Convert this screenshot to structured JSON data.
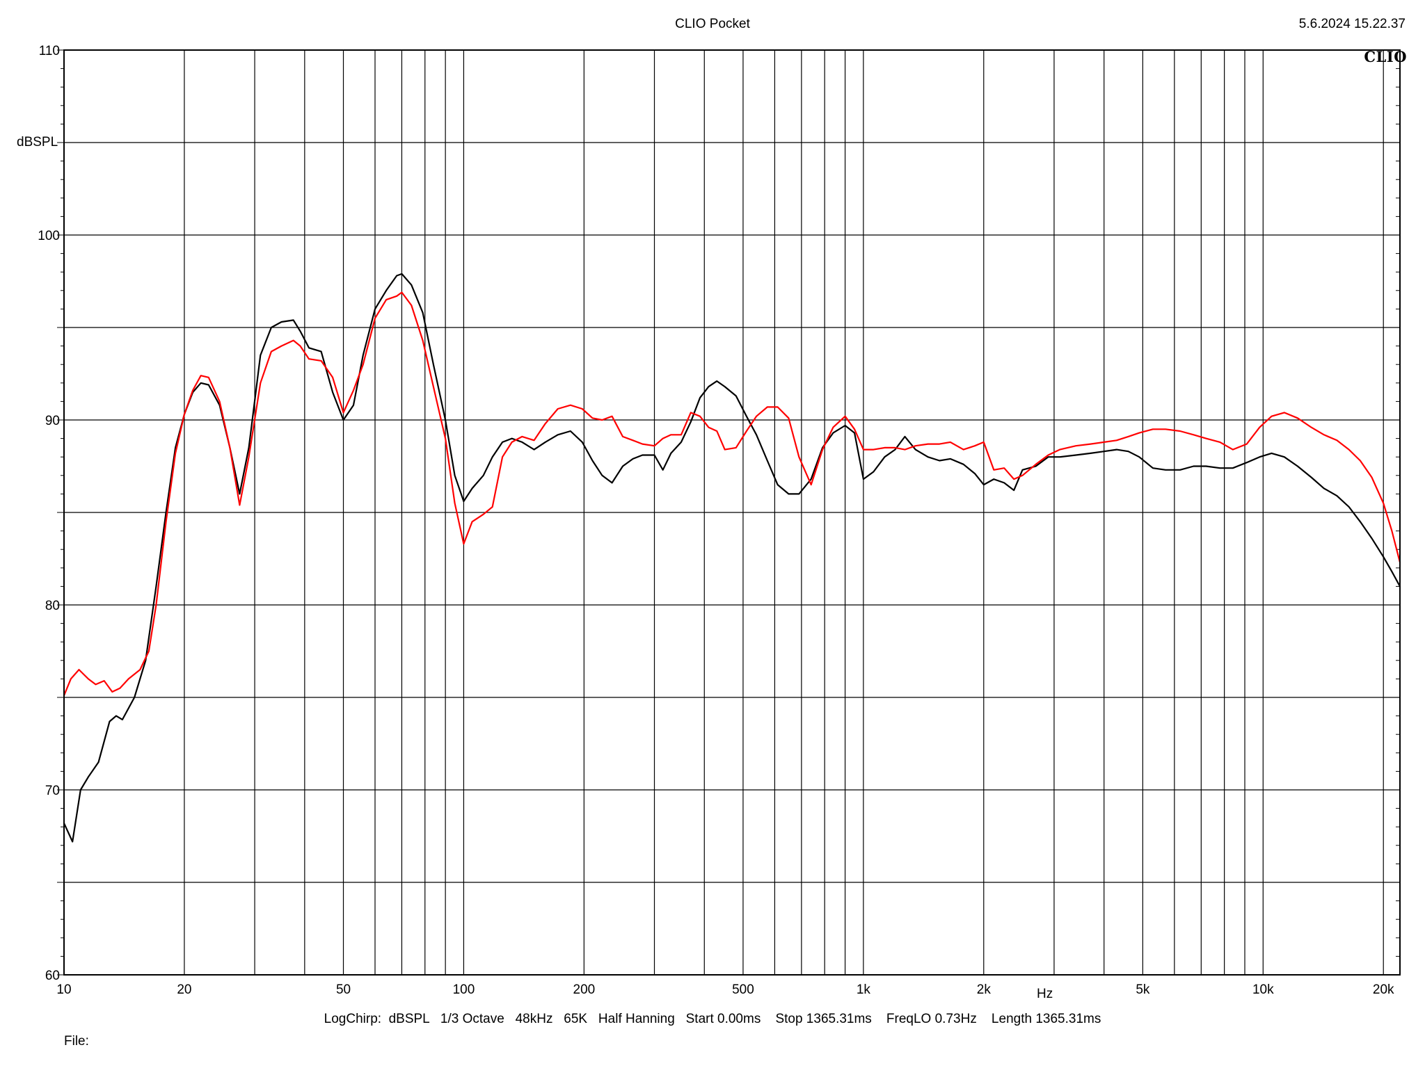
{
  "window": {
    "title": "CLIO Pocket",
    "datetime": "5.6.2024 15.22.37",
    "brand": "CLIO"
  },
  "footer": {
    "params": "LogChirp:  dBSPL   1/3 Octave   48kHz   65K   Half Hanning   Start 0.00ms    Stop 1365.31ms    FreqLO 0.73Hz    Length 1365.31ms",
    "file_label": "File:"
  },
  "chart_data": {
    "type": "line",
    "title": "CLIO Pocket",
    "xlabel": "Hz",
    "ylabel": "dBSPL",
    "x_scale": "log",
    "xlim": [
      10,
      22000
    ],
    "ylim": [
      60,
      110
    ],
    "grid": true,
    "x_tick_labels": [
      {
        "value": 10,
        "label": "10"
      },
      {
        "value": 20,
        "label": "20"
      },
      {
        "value": 50,
        "label": "50"
      },
      {
        "value": 100,
        "label": "100"
      },
      {
        "value": 200,
        "label": "200"
      },
      {
        "value": 500,
        "label": "500"
      },
      {
        "value": 1000,
        "label": "1k"
      },
      {
        "value": 2000,
        "label": "2k"
      },
      {
        "value": 5000,
        "label": "5k"
      },
      {
        "value": 10000,
        "label": "10k"
      },
      {
        "value": 20000,
        "label": "20k"
      }
    ],
    "y_tick_labels": [
      {
        "value": 60,
        "label": "60"
      },
      {
        "value": 70,
        "label": "70"
      },
      {
        "value": 80,
        "label": "80"
      },
      {
        "value": 90,
        "label": "90"
      },
      {
        "value": 100,
        "label": "100"
      },
      {
        "value": 110,
        "label": "110"
      }
    ],
    "series": [
      {
        "color": "#000000",
        "points": [
          [
            10,
            68.2
          ],
          [
            10.5,
            67.2
          ],
          [
            11,
            70.0
          ],
          [
            11.5,
            70.7
          ],
          [
            12.2,
            71.5
          ],
          [
            13,
            73.7
          ],
          [
            13.5,
            74.0
          ],
          [
            14,
            73.8
          ],
          [
            15,
            75.0
          ],
          [
            16,
            77.0
          ],
          [
            17,
            81.0
          ],
          [
            18,
            85.0
          ],
          [
            19,
            88.5
          ],
          [
            20,
            90.3
          ],
          [
            21,
            91.5
          ],
          [
            22,
            92.0
          ],
          [
            23,
            91.9
          ],
          [
            24.5,
            90.8
          ],
          [
            26,
            88.5
          ],
          [
            27.5,
            86.0
          ],
          [
            29,
            88.5
          ],
          [
            31,
            93.5
          ],
          [
            33,
            95.0
          ],
          [
            35,
            95.3
          ],
          [
            37.5,
            95.4
          ],
          [
            39,
            94.8
          ],
          [
            41,
            93.9
          ],
          [
            44,
            93.7
          ],
          [
            47,
            91.5
          ],
          [
            50,
            90.0
          ],
          [
            53,
            90.8
          ],
          [
            56,
            93.5
          ],
          [
            60,
            96.0
          ],
          [
            64,
            97.0
          ],
          [
            68,
            97.8
          ],
          [
            70,
            97.9
          ],
          [
            74,
            97.3
          ],
          [
            79,
            95.8
          ],
          [
            84,
            93.0
          ],
          [
            90,
            90.0
          ],
          [
            95,
            87.0
          ],
          [
            100,
            85.6
          ],
          [
            105,
            86.3
          ],
          [
            112,
            87.0
          ],
          [
            118,
            88.0
          ],
          [
            125,
            88.8
          ],
          [
            132,
            89.0
          ],
          [
            140,
            88.8
          ],
          [
            150,
            88.4
          ],
          [
            160,
            88.8
          ],
          [
            172,
            89.2
          ],
          [
            185,
            89.4
          ],
          [
            198,
            88.8
          ],
          [
            210,
            87.8
          ],
          [
            222,
            87.0
          ],
          [
            235,
            86.6
          ],
          [
            250,
            87.5
          ],
          [
            265,
            87.9
          ],
          [
            280,
            88.1
          ],
          [
            300,
            88.1
          ],
          [
            315,
            87.3
          ],
          [
            330,
            88.2
          ],
          [
            350,
            88.8
          ],
          [
            370,
            89.9
          ],
          [
            390,
            91.2
          ],
          [
            410,
            91.8
          ],
          [
            430,
            92.1
          ],
          [
            450,
            91.8
          ],
          [
            480,
            91.3
          ],
          [
            510,
            90.2
          ],
          [
            540,
            89.2
          ],
          [
            575,
            87.8
          ],
          [
            610,
            86.5
          ],
          [
            650,
            86.0
          ],
          [
            690,
            86.0
          ],
          [
            740,
            86.8
          ],
          [
            790,
            88.5
          ],
          [
            840,
            89.3
          ],
          [
            900,
            89.7
          ],
          [
            950,
            89.3
          ],
          [
            1000,
            86.8
          ],
          [
            1060,
            87.2
          ],
          [
            1130,
            88.0
          ],
          [
            1200,
            88.4
          ],
          [
            1270,
            89.1
          ],
          [
            1350,
            88.4
          ],
          [
            1450,
            88.0
          ],
          [
            1550,
            87.8
          ],
          [
            1650,
            87.9
          ],
          [
            1780,
            87.6
          ],
          [
            1900,
            87.1
          ],
          [
            2000,
            86.5
          ],
          [
            2120,
            86.8
          ],
          [
            2250,
            86.6
          ],
          [
            2380,
            86.2
          ],
          [
            2500,
            87.3
          ],
          [
            2700,
            87.5
          ],
          [
            2900,
            88.0
          ],
          [
            3100,
            88.0
          ],
          [
            3400,
            88.1
          ],
          [
            3700,
            88.2
          ],
          [
            4000,
            88.3
          ],
          [
            4300,
            88.4
          ],
          [
            4600,
            88.3
          ],
          [
            4900,
            88.0
          ],
          [
            5300,
            87.4
          ],
          [
            5700,
            87.3
          ],
          [
            6200,
            87.3
          ],
          [
            6700,
            87.5
          ],
          [
            7200,
            87.5
          ],
          [
            7800,
            87.4
          ],
          [
            8400,
            87.4
          ],
          [
            9100,
            87.7
          ],
          [
            9800,
            88.0
          ],
          [
            10500,
            88.2
          ],
          [
            11300,
            88.0
          ],
          [
            12200,
            87.5
          ],
          [
            13200,
            86.9
          ],
          [
            14200,
            86.3
          ],
          [
            15300,
            85.9
          ],
          [
            16400,
            85.3
          ],
          [
            17500,
            84.5
          ],
          [
            18700,
            83.6
          ],
          [
            20000,
            82.6
          ],
          [
            21000,
            81.8
          ],
          [
            22000,
            81.0
          ]
        ]
      },
      {
        "color": "#ff0000",
        "points": [
          [
            10,
            75.1
          ],
          [
            10.4,
            76.0
          ],
          [
            10.9,
            76.5
          ],
          [
            11.5,
            76.0
          ],
          [
            12,
            75.7
          ],
          [
            12.6,
            75.9
          ],
          [
            13.2,
            75.3
          ],
          [
            13.8,
            75.5
          ],
          [
            14.5,
            76.0
          ],
          [
            15.5,
            76.5
          ],
          [
            16.3,
            77.5
          ],
          [
            17,
            80.0
          ],
          [
            18,
            84.5
          ],
          [
            19,
            88.2
          ],
          [
            20,
            90.3
          ],
          [
            21,
            91.6
          ],
          [
            22,
            92.4
          ],
          [
            23,
            92.3
          ],
          [
            24.5,
            91.0
          ],
          [
            26,
            88.5
          ],
          [
            27.5,
            85.4
          ],
          [
            29,
            88.0
          ],
          [
            31,
            92.0
          ],
          [
            33,
            93.7
          ],
          [
            35,
            94.0
          ],
          [
            37.5,
            94.3
          ],
          [
            39,
            94.0
          ],
          [
            41,
            93.3
          ],
          [
            44,
            93.2
          ],
          [
            47,
            92.3
          ],
          [
            50,
            90.4
          ],
          [
            53,
            91.6
          ],
          [
            56,
            93.0
          ],
          [
            60,
            95.5
          ],
          [
            64,
            96.5
          ],
          [
            68,
            96.7
          ],
          [
            70,
            96.9
          ],
          [
            74,
            96.2
          ],
          [
            79,
            94.3
          ],
          [
            84,
            91.8
          ],
          [
            90,
            89.0
          ],
          [
            95,
            85.5
          ],
          [
            100,
            83.3
          ],
          [
            105,
            84.5
          ],
          [
            112,
            84.9
          ],
          [
            118,
            85.3
          ],
          [
            125,
            88.0
          ],
          [
            132,
            88.8
          ],
          [
            140,
            89.1
          ],
          [
            150,
            88.9
          ],
          [
            160,
            89.8
          ],
          [
            172,
            90.6
          ],
          [
            185,
            90.8
          ],
          [
            198,
            90.6
          ],
          [
            210,
            90.1
          ],
          [
            222,
            90.0
          ],
          [
            235,
            90.2
          ],
          [
            250,
            89.1
          ],
          [
            265,
            88.9
          ],
          [
            280,
            88.7
          ],
          [
            300,
            88.6
          ],
          [
            315,
            89.0
          ],
          [
            330,
            89.2
          ],
          [
            350,
            89.2
          ],
          [
            370,
            90.4
          ],
          [
            390,
            90.2
          ],
          [
            410,
            89.6
          ],
          [
            430,
            89.4
          ],
          [
            450,
            88.4
          ],
          [
            480,
            88.5
          ],
          [
            510,
            89.4
          ],
          [
            540,
            90.2
          ],
          [
            575,
            90.7
          ],
          [
            610,
            90.7
          ],
          [
            650,
            90.1
          ],
          [
            690,
            88.0
          ],
          [
            740,
            86.5
          ],
          [
            790,
            88.4
          ],
          [
            840,
            89.6
          ],
          [
            900,
            90.2
          ],
          [
            950,
            89.5
          ],
          [
            1000,
            88.4
          ],
          [
            1060,
            88.4
          ],
          [
            1130,
            88.5
          ],
          [
            1200,
            88.5
          ],
          [
            1270,
            88.4
          ],
          [
            1350,
            88.6
          ],
          [
            1450,
            88.7
          ],
          [
            1550,
            88.7
          ],
          [
            1650,
            88.8
          ],
          [
            1780,
            88.4
          ],
          [
            1900,
            88.6
          ],
          [
            2000,
            88.8
          ],
          [
            2120,
            87.3
          ],
          [
            2250,
            87.4
          ],
          [
            2380,
            86.8
          ],
          [
            2500,
            87.0
          ],
          [
            2700,
            87.6
          ],
          [
            2900,
            88.1
          ],
          [
            3100,
            88.4
          ],
          [
            3400,
            88.6
          ],
          [
            3700,
            88.7
          ],
          [
            4000,
            88.8
          ],
          [
            4300,
            88.9
          ],
          [
            4600,
            89.1
          ],
          [
            4900,
            89.3
          ],
          [
            5300,
            89.5
          ],
          [
            5700,
            89.5
          ],
          [
            6200,
            89.4
          ],
          [
            6700,
            89.2
          ],
          [
            7200,
            89.0
          ],
          [
            7800,
            88.8
          ],
          [
            8400,
            88.4
          ],
          [
            9100,
            88.7
          ],
          [
            9800,
            89.6
          ],
          [
            10500,
            90.2
          ],
          [
            11300,
            90.4
          ],
          [
            12200,
            90.1
          ],
          [
            13200,
            89.6
          ],
          [
            14200,
            89.2
          ],
          [
            15300,
            88.9
          ],
          [
            16400,
            88.4
          ],
          [
            17500,
            87.8
          ],
          [
            18700,
            86.9
          ],
          [
            20000,
            85.5
          ],
          [
            21000,
            84.0
          ],
          [
            22000,
            82.3
          ]
        ]
      }
    ]
  }
}
